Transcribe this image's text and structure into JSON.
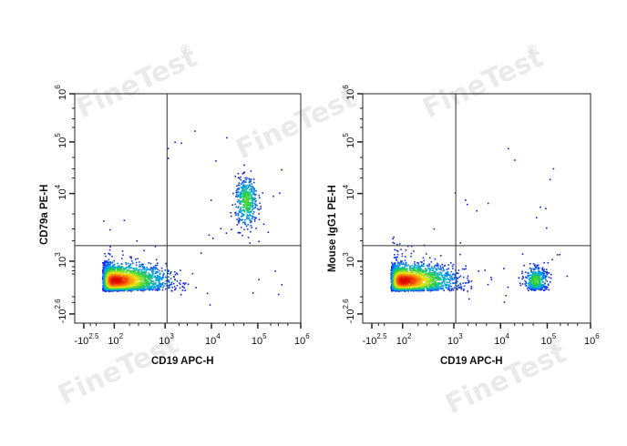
{
  "watermark": {
    "text": "FineTest",
    "mark": "®"
  },
  "chart_data": [
    {
      "type": "scatter",
      "panel": "left",
      "xlabel": "CD19 APC-H",
      "ylabel": "CD79a PE-H",
      "x_tick_labels": [
        {
          "base": "-10",
          "exp": "2.5",
          "value": -316
        },
        {
          "base": "10",
          "exp": "2",
          "value": 100
        },
        {
          "base": "10",
          "exp": "3",
          "value": 1000
        },
        {
          "base": "10",
          "exp": "4",
          "value": 10000
        },
        {
          "base": "10",
          "exp": "5",
          "value": 100000
        },
        {
          "base": "10",
          "exp": "6",
          "value": 1000000
        }
      ],
      "y_tick_labels": [
        {
          "base": "-10",
          "exp": "2.6",
          "value": -398
        },
        {
          "base": "10",
          "exp": "3",
          "value": 1000
        },
        {
          "base": "10",
          "exp": "4",
          "value": 10000
        },
        {
          "base": "10",
          "exp": "5",
          "value": 100000
        },
        {
          "base": "10",
          "exp": "6",
          "value": 1000000
        }
      ],
      "gate": {
        "x": 1100,
        "y": 1700
      },
      "populations": [
        {
          "name": "CD19- CD79a-",
          "x_center": 100,
          "y_center": 100,
          "count": 2600,
          "spread_x": 0.5,
          "spread_y": 0.45
        },
        {
          "name": "CD19+ CD79a+",
          "x_center": 55000,
          "y_center": 8000,
          "count": 450,
          "spread_x": 0.12,
          "spread_y": 0.2
        }
      ]
    },
    {
      "type": "scatter",
      "panel": "right",
      "xlabel": "CD19 APC-H",
      "ylabel": "Mouse IgG1 PE-H",
      "x_tick_labels": [
        {
          "base": "-10",
          "exp": "2.5",
          "value": -316
        },
        {
          "base": "10",
          "exp": "2",
          "value": 100
        },
        {
          "base": "10",
          "exp": "3",
          "value": 1000
        },
        {
          "base": "10",
          "exp": "4",
          "value": 10000
        },
        {
          "base": "10",
          "exp": "5",
          "value": 100000
        },
        {
          "base": "10",
          "exp": "6",
          "value": 1000000
        }
      ],
      "y_tick_labels": [
        {
          "base": "-10",
          "exp": "2.6",
          "value": -398
        },
        {
          "base": "10",
          "exp": "3",
          "value": 1000
        },
        {
          "base": "10",
          "exp": "4",
          "value": 10000
        },
        {
          "base": "10",
          "exp": "5",
          "value": 100000
        },
        {
          "base": "10",
          "exp": "6",
          "value": 1000000
        }
      ],
      "gate": {
        "x": 1100,
        "y": 1700
      },
      "populations": [
        {
          "name": "CD19- IgG1-",
          "x_center": 100,
          "y_center": 100,
          "count": 2600,
          "spread_x": 0.5,
          "spread_y": 0.45
        },
        {
          "name": "CD19+ IgG1-",
          "x_center": 55000,
          "y_center": 100,
          "count": 450,
          "spread_x": 0.12,
          "spread_y": 0.35
        }
      ]
    }
  ]
}
